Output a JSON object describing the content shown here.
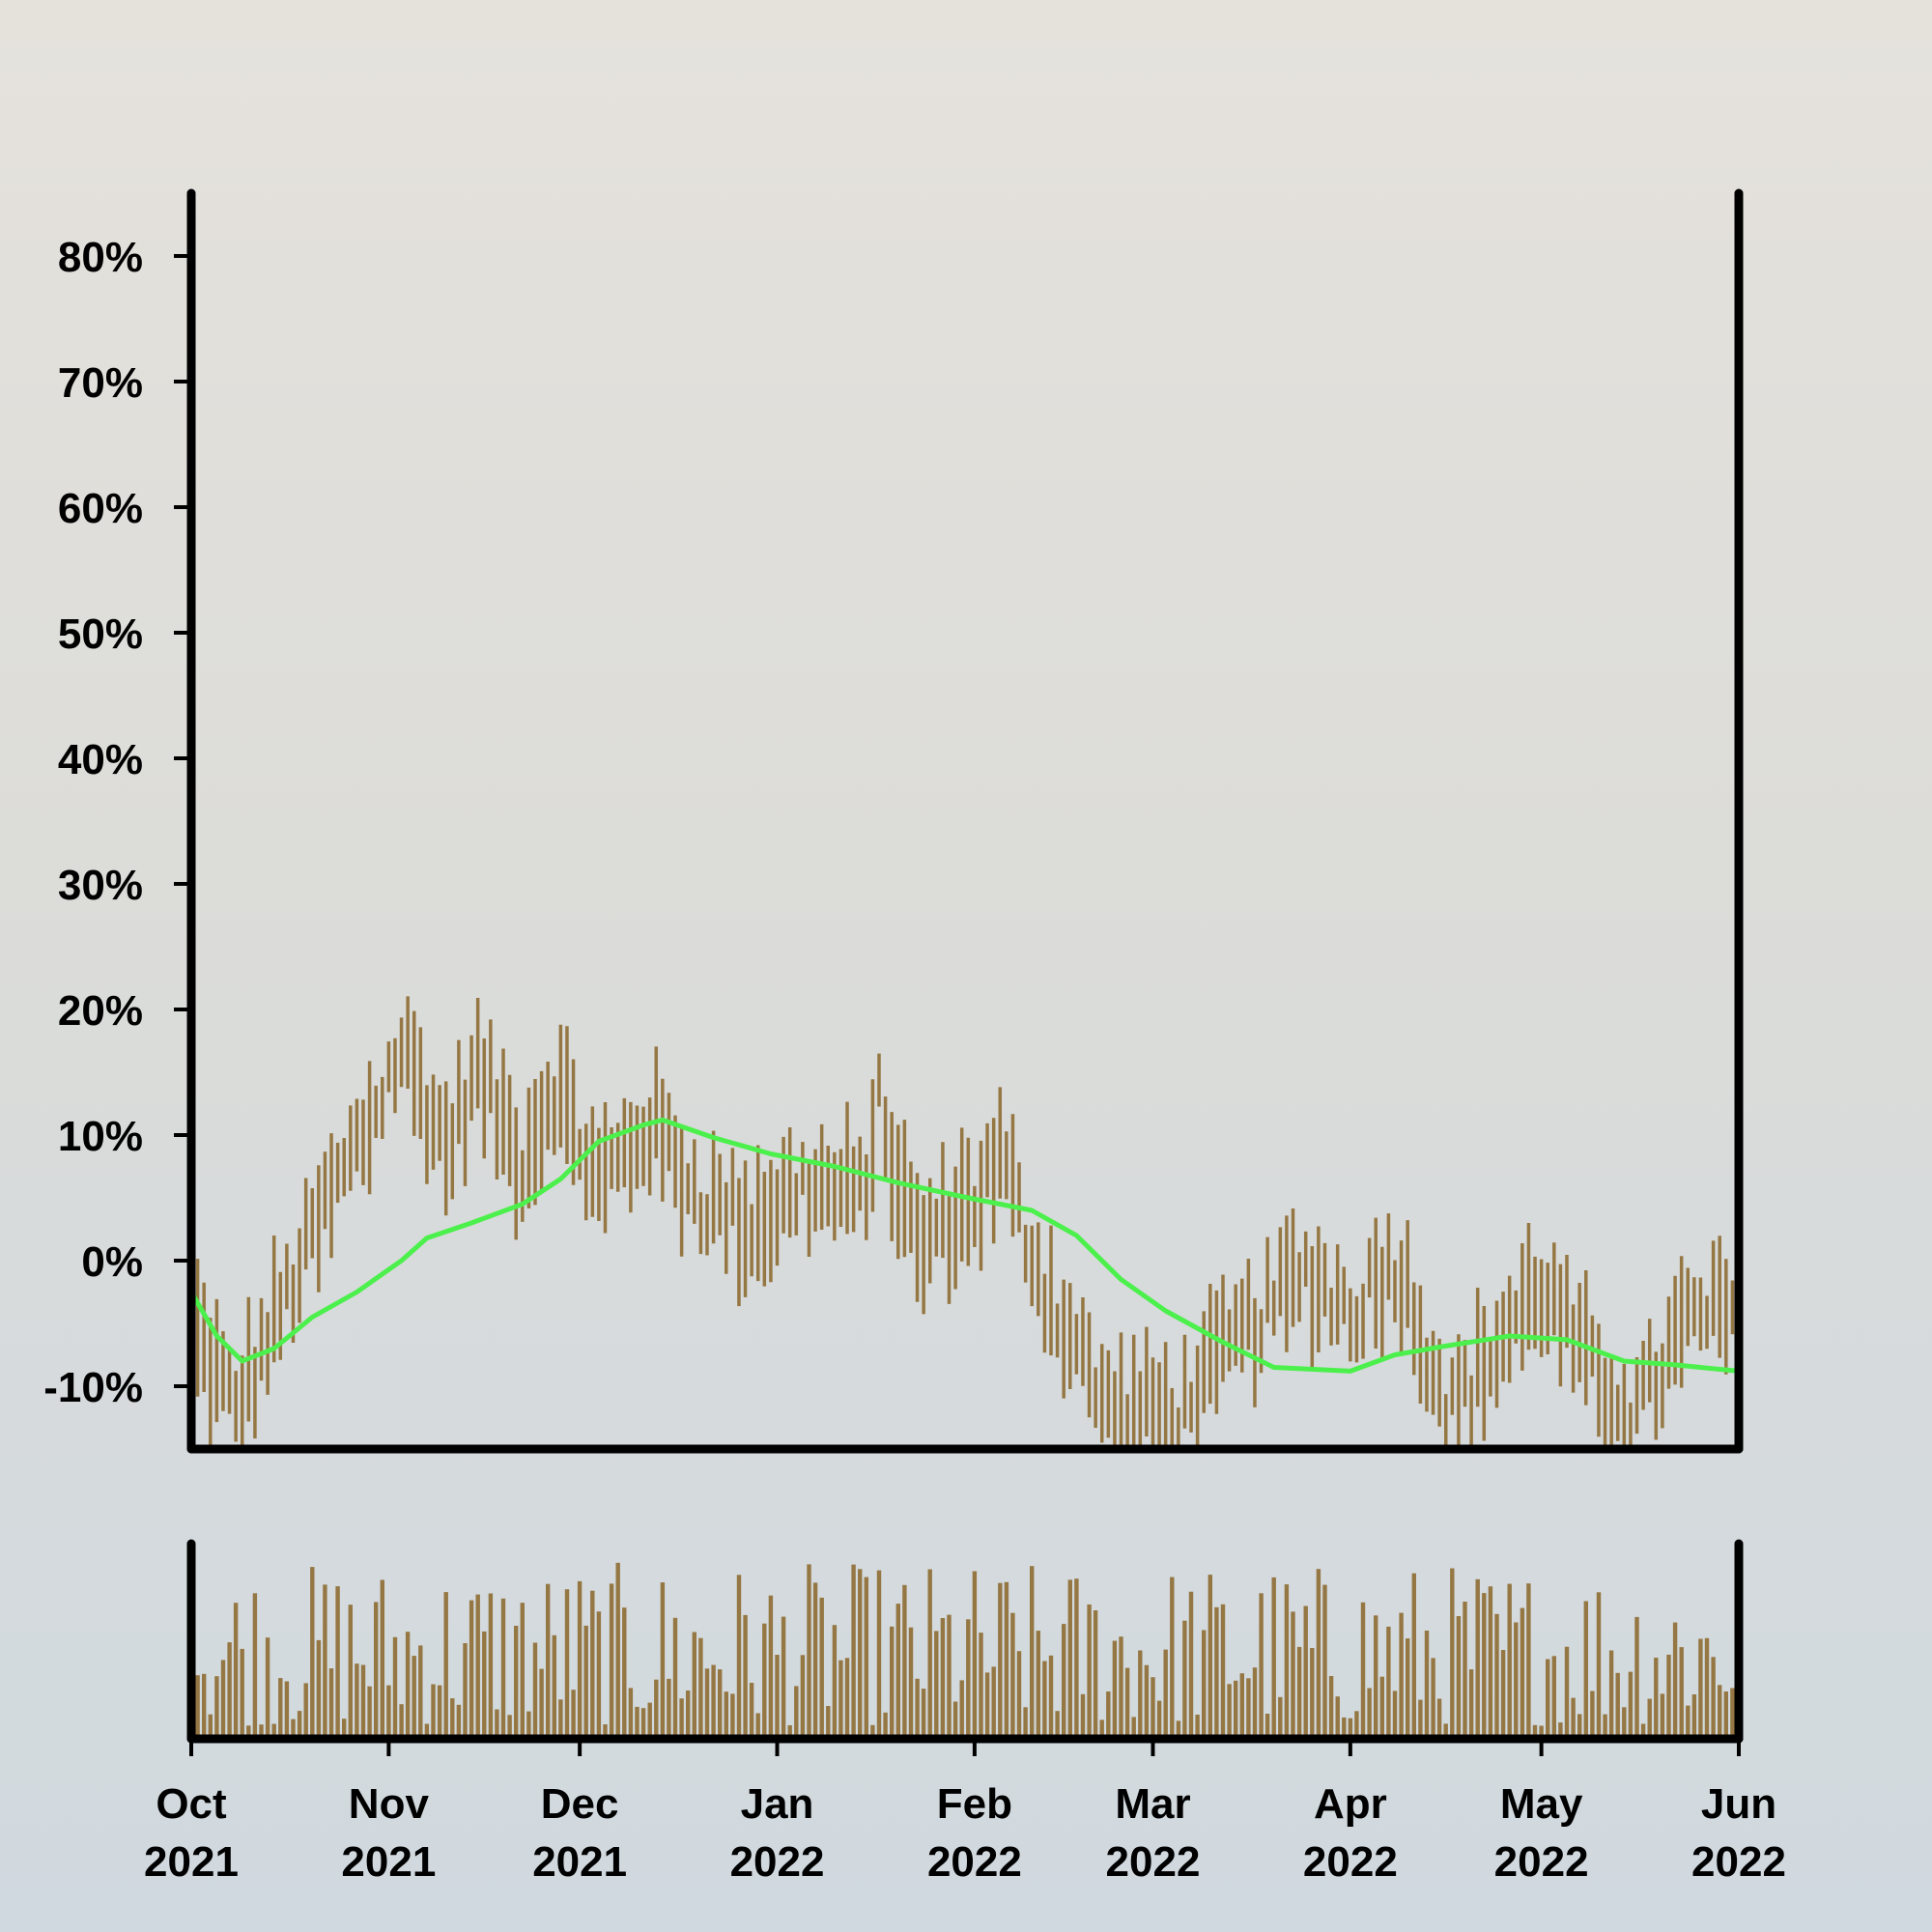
{
  "colors": {
    "price_bars": "#957744",
    "volume_bars": "#957744",
    "moving_average": "#4cf04c",
    "axes": "#000000",
    "background_top": "#e5e2dc",
    "background_bottom": "#d0d9df"
  },
  "chart_data": [
    {
      "type": "ohlc",
      "panel": "price",
      "x_axis": {
        "type": "date",
        "start": "2021-10-01",
        "end": "2022-06-01",
        "ticks": [
          {
            "date": "2021-10-01",
            "label": [
              "Oct",
              "2021"
            ]
          },
          {
            "date": "2021-11-01",
            "label": [
              "Nov",
              "2021"
            ]
          },
          {
            "date": "2021-12-01",
            "label": [
              "Dec",
              "2021"
            ]
          },
          {
            "date": "2022-01-01",
            "label": [
              "Jan",
              "2022"
            ]
          },
          {
            "date": "2022-02-01",
            "label": [
              "Feb",
              "2022"
            ]
          },
          {
            "date": "2022-03-01",
            "label": [
              "Mar",
              "2022"
            ]
          },
          {
            "date": "2022-04-01",
            "label": [
              "Apr",
              "2022"
            ]
          },
          {
            "date": "2022-05-01",
            "label": [
              "May",
              "2022"
            ]
          },
          {
            "date": "2022-06-01",
            "label": [
              "Jun",
              "2022"
            ]
          }
        ]
      },
      "y_axis": {
        "unit": "%",
        "ylim": [
          -15,
          85
        ],
        "ticks": [
          {
            "value": -10,
            "label": "-10%"
          },
          {
            "value": 0,
            "label": "0%"
          },
          {
            "value": 10,
            "label": "10%"
          },
          {
            "value": 20,
            "label": "20%"
          },
          {
            "value": 30,
            "label": "30%"
          },
          {
            "value": 40,
            "label": "40%"
          },
          {
            "value": 50,
            "label": "50%"
          },
          {
            "value": 60,
            "label": "60%"
          },
          {
            "value": 70,
            "label": "70%"
          },
          {
            "value": 80,
            "label": "80%"
          }
        ]
      },
      "price_series_anchors": [
        {
          "date": "2021-10-01",
          "value": -5
        },
        {
          "date": "2021-10-08",
          "value": -12
        },
        {
          "date": "2021-10-15",
          "value": -4
        },
        {
          "date": "2021-10-22",
          "value": 4
        },
        {
          "date": "2021-10-29",
          "value": 11
        },
        {
          "date": "2021-11-03",
          "value": 17
        },
        {
          "date": "2021-11-10",
          "value": 9
        },
        {
          "date": "2021-11-15",
          "value": 15
        },
        {
          "date": "2021-11-22",
          "value": 8
        },
        {
          "date": "2021-11-27",
          "value": 14
        },
        {
          "date": "2021-12-04",
          "value": 6
        },
        {
          "date": "2021-12-12",
          "value": 11
        },
        {
          "date": "2021-12-20",
          "value": 5
        },
        {
          "date": "2021-12-28",
          "value": 3
        },
        {
          "date": "2022-01-05",
          "value": 6
        },
        {
          "date": "2022-01-14",
          "value": 5
        },
        {
          "date": "2022-01-17",
          "value": 12
        },
        {
          "date": "2022-01-23",
          "value": 1
        },
        {
          "date": "2022-02-01",
          "value": 5
        },
        {
          "date": "2022-02-05",
          "value": 8
        },
        {
          "date": "2022-02-12",
          "value": -2
        },
        {
          "date": "2022-02-22",
          "value": -12
        },
        {
          "date": "2022-03-05",
          "value": -12
        },
        {
          "date": "2022-03-15",
          "value": -6
        },
        {
          "date": "2022-03-25",
          "value": -1
        },
        {
          "date": "2022-04-01",
          "value": -4
        },
        {
          "date": "2022-04-08",
          "value": 0
        },
        {
          "date": "2022-04-17",
          "value": -12
        },
        {
          "date": "2022-04-25",
          "value": -6
        },
        {
          "date": "2022-05-01",
          "value": -2
        },
        {
          "date": "2022-05-10",
          "value": -10
        },
        {
          "date": "2022-05-16",
          "value": -12
        },
        {
          "date": "2022-05-24",
          "value": -5
        },
        {
          "date": "2022-06-01",
          "value": -4
        }
      ],
      "moving_average": [
        {
          "date": "2021-10-01",
          "value": -2.5
        },
        {
          "date": "2021-10-05",
          "value": -6
        },
        {
          "date": "2021-10-09",
          "value": -8
        },
        {
          "date": "2021-10-14",
          "value": -7
        },
        {
          "date": "2021-10-20",
          "value": -4.5
        },
        {
          "date": "2021-10-27",
          "value": -2.5
        },
        {
          "date": "2021-11-03",
          "value": 0
        },
        {
          "date": "2021-11-07",
          "value": 1.8
        },
        {
          "date": "2021-11-14",
          "value": 3
        },
        {
          "date": "2021-11-22",
          "value": 4.5
        },
        {
          "date": "2021-11-28",
          "value": 6.5
        },
        {
          "date": "2021-12-04",
          "value": 9.5
        },
        {
          "date": "2021-12-11",
          "value": 10.8
        },
        {
          "date": "2021-12-14",
          "value": 11.2
        },
        {
          "date": "2021-12-22",
          "value": 9.8
        },
        {
          "date": "2021-12-31",
          "value": 8.5
        },
        {
          "date": "2022-01-10",
          "value": 7.5
        },
        {
          "date": "2022-01-20",
          "value": 6.2
        },
        {
          "date": "2022-01-31",
          "value": 5
        },
        {
          "date": "2022-02-10",
          "value": 4
        },
        {
          "date": "2022-02-17",
          "value": 2
        },
        {
          "date": "2022-02-24",
          "value": -1.5
        },
        {
          "date": "2022-03-03",
          "value": -4
        },
        {
          "date": "2022-03-12",
          "value": -6.5
        },
        {
          "date": "2022-03-20",
          "value": -8.5
        },
        {
          "date": "2022-04-01",
          "value": -8.8
        },
        {
          "date": "2022-04-08",
          "value": -7.5
        },
        {
          "date": "2022-04-16",
          "value": -6.8
        },
        {
          "date": "2022-04-26",
          "value": -6
        },
        {
          "date": "2022-05-05",
          "value": -6.3
        },
        {
          "date": "2022-05-14",
          "value": -8
        },
        {
          "date": "2022-05-22",
          "value": -8.3
        },
        {
          "date": "2022-06-01",
          "value": -8.8
        }
      ]
    },
    {
      "type": "bar",
      "panel": "volume",
      "x_axis": {
        "type": "date",
        "start": "2021-10-01",
        "end": "2022-06-01"
      },
      "y_axis": {
        "ticks": [],
        "ylim": [
          0,
          1
        ]
      },
      "value_range": [
        0.05,
        0.95
      ]
    }
  ]
}
